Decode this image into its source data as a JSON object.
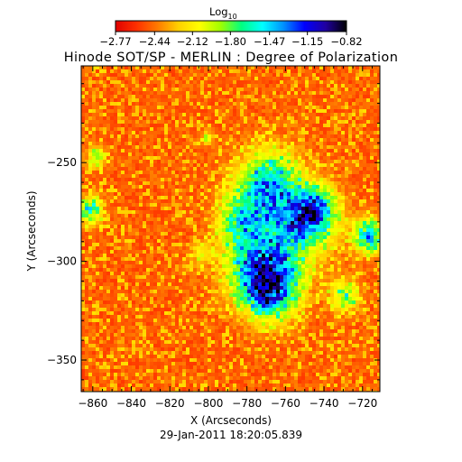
{
  "chart_data": {
    "type": "heatmap",
    "title": "Hinode SOT/SP - MERLIN : Degree of Polarization",
    "xlabel": "X (Arcseconds)",
    "ylabel": "Y (Arcseconds)",
    "xlim": [
      -866,
      -711
    ],
    "ylim": [
      -366,
      -201
    ],
    "x_ticks": [
      -860,
      -840,
      -820,
      -800,
      -780,
      -760,
      -740,
      -720
    ],
    "y_ticks": [
      -250,
      -300,
      -350
    ],
    "colorbar": {
      "label": "Log",
      "label_subscript": "10",
      "range": [
        -2.77,
        -0.82
      ],
      "tick_values": [
        -2.77,
        -2.44,
        -2.12,
        -1.8,
        -1.47,
        -1.15,
        -0.82
      ],
      "tick_labels": [
        "−2.77",
        "−2.44",
        "−2.12",
        "−1.80",
        "−1.47",
        "−1.15",
        "−0.82"
      ],
      "colormap": [
        "#e00000",
        "#ff3000",
        "#ff7a00",
        "#ffd000",
        "#ffff00",
        "#a0ff00",
        "#00ff80",
        "#00ffff",
        "#0090ff",
        "#0000ff",
        "#2000a0",
        "#000000"
      ]
    },
    "grid": false,
    "timestamp": "29-Jan-2011 18:20:05.839"
  }
}
